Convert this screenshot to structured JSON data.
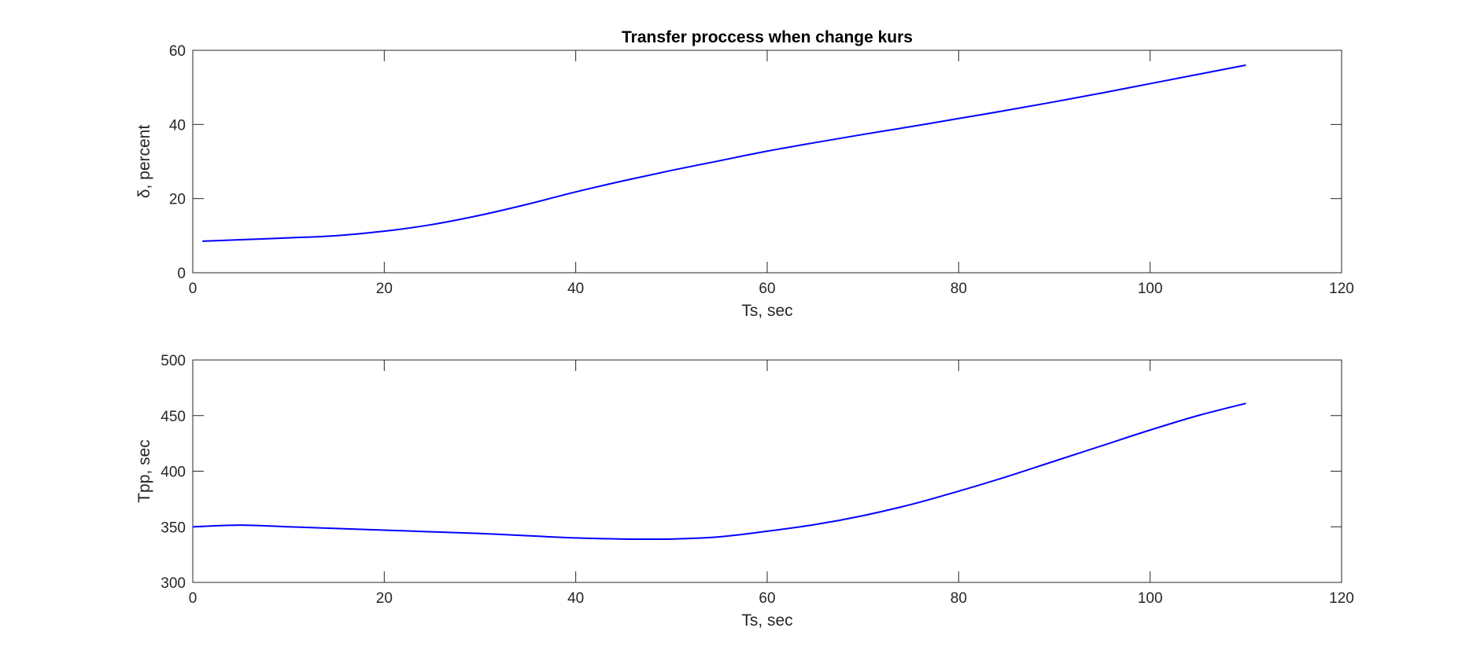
{
  "chart_data": [
    {
      "type": "line",
      "title": "Transfer proccess when change kurs",
      "xlabel": "Ts, sec",
      "ylabel": "δ, percent",
      "xlim": [
        0,
        120
      ],
      "ylim": [
        0,
        60
      ],
      "xticks": [
        "0",
        "20",
        "40",
        "60",
        "80",
        "100",
        "120"
      ],
      "yticks": [
        "0",
        "20",
        "40",
        "60"
      ],
      "grid": false,
      "series": [
        {
          "color": "#0000ff",
          "x": [
            1,
            5,
            10,
            15,
            20,
            25,
            30,
            35,
            40,
            45,
            50,
            55,
            60,
            65,
            70,
            75,
            80,
            85,
            90,
            95,
            100,
            105,
            110
          ],
          "y": [
            8.5,
            8.9,
            9.4,
            10.0,
            11.2,
            13.0,
            15.5,
            18.5,
            21.8,
            24.8,
            27.6,
            30.2,
            32.8,
            35.1,
            37.3,
            39.4,
            41.6,
            43.8,
            46.1,
            48.5,
            51.0,
            53.5,
            56.0
          ]
        }
      ]
    },
    {
      "type": "line",
      "title": "",
      "xlabel": "Ts, sec",
      "ylabel": "Tpp, sec",
      "xlim": [
        0,
        120
      ],
      "ylim": [
        300,
        500
      ],
      "xticks": [
        "0",
        "20",
        "40",
        "60",
        "80",
        "100",
        "120"
      ],
      "yticks": [
        "300",
        "350",
        "400",
        "450",
        "500"
      ],
      "grid": false,
      "series": [
        {
          "color": "#0000ff",
          "x": [
            0,
            5,
            10,
            15,
            20,
            25,
            30,
            35,
            40,
            45,
            50,
            55,
            60,
            65,
            70,
            75,
            80,
            85,
            90,
            95,
            100,
            105,
            110
          ],
          "y": [
            350,
            351.5,
            350,
            348.5,
            347,
            345.5,
            344,
            342,
            340,
            339,
            339,
            341,
            346,
            352,
            360,
            370,
            382,
            395,
            409,
            423,
            437,
            450,
            461
          ]
        }
      ]
    }
  ]
}
